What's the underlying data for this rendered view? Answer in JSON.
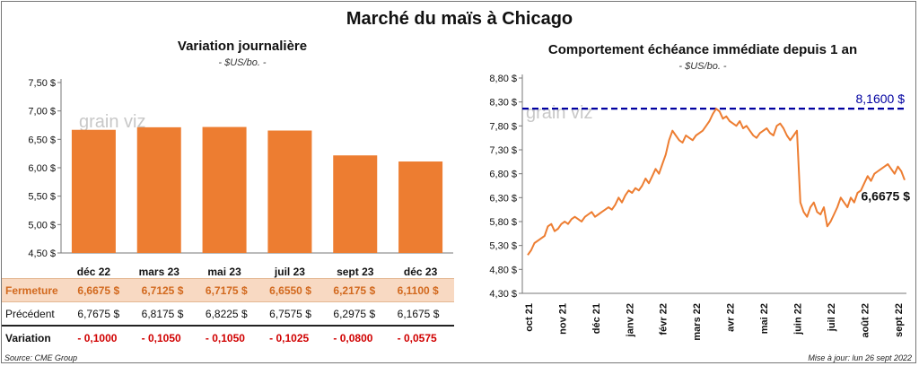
{
  "title": "Marché du maïs à Chicago",
  "left_panel": {
    "subtitle": "Variation  journalière",
    "unit": "- $US/bo. -",
    "watermark": "grain viz"
  },
  "right_panel": {
    "subtitle": "Comportement  échéance immédiate depuis 1 an",
    "unit": "- $US/bo. -",
    "watermark": "grain viz"
  },
  "table": {
    "rows": [
      {
        "label": "Fermeture",
        "values": [
          "6,6675  $",
          "6,7125  $",
          "6,7175  $",
          "6,6550  $",
          "6,2175  $",
          "6,1100  $"
        ]
      },
      {
        "label": "Précédent",
        "values": [
          "6,7675  $",
          "6,8175  $",
          "6,8225  $",
          "6,7575  $",
          "6,2975  $",
          "6,1675  $"
        ]
      },
      {
        "label": "Variation",
        "values": [
          "- 0,1000",
          "- 0,1050",
          "- 0,1050",
          "- 0,1025",
          "- 0,0800",
          "- 0,0575"
        ]
      }
    ]
  },
  "footer": {
    "source": "Source: CME Group",
    "updated": "Mise à jour: lun 26 sept 2022"
  },
  "colors": {
    "bar": "#ed7d31",
    "line": "#ed7d31",
    "max_line": "#0000a0",
    "variation": "#d00000"
  },
  "chart_data": [
    {
      "type": "bar",
      "categories": [
        "déc 22",
        "mars 23",
        "mai 23",
        "juil 23",
        "sept 23",
        "déc 23"
      ],
      "values": [
        6.6675,
        6.7125,
        6.7175,
        6.655,
        6.2175,
        6.11
      ],
      "ylim": [
        4.5,
        7.5
      ],
      "yticks": [
        "4,50 $",
        "5,00 $",
        "5,50 $",
        "6,00 $",
        "6,50 $",
        "7,00 $",
        "7,50 $"
      ],
      "ytick_values": [
        4.5,
        5.0,
        5.5,
        6.0,
        6.5,
        7.0,
        7.5
      ],
      "grid": false
    },
    {
      "type": "line",
      "xlabels": [
        "oct 21",
        "nov 21",
        "déc 21",
        "janv 22",
        "févr 22",
        "mars 22",
        "avr 22",
        "mai 22",
        "juin 22",
        "juil 22",
        "août 22",
        "sept 22"
      ],
      "ylim": [
        4.3,
        8.8
      ],
      "yticks": [
        "4,30 $",
        "4,80 $",
        "5,30 $",
        "5,80 $",
        "6,30 $",
        "6,80 $",
        "7,30 $",
        "7,80 $",
        "8,30 $",
        "8,80 $"
      ],
      "ytick_values": [
        4.3,
        4.8,
        5.3,
        5.8,
        6.3,
        6.8,
        7.3,
        7.8,
        8.3,
        8.8
      ],
      "max_value": 8.16,
      "max_label": "8,1600 $",
      "last_label": "6,6675 $",
      "series": [
        {
          "values": [
            5.1,
            5.2,
            5.35,
            5.4,
            5.45,
            5.5,
            5.7,
            5.75,
            5.6,
            5.65,
            5.75,
            5.8,
            5.75,
            5.85,
            5.9,
            5.85,
            5.8,
            5.9,
            5.95,
            6.0,
            5.9,
            5.95,
            6.0,
            6.05,
            6.1,
            6.05,
            6.15,
            6.3,
            6.2,
            6.35,
            6.45,
            6.4,
            6.5,
            6.45,
            6.55,
            6.7,
            6.6,
            6.75,
            6.9,
            6.8,
            7.0,
            7.2,
            7.5,
            7.7,
            7.6,
            7.5,
            7.45,
            7.6,
            7.55,
            7.5,
            7.6,
            7.65,
            7.7,
            7.8,
            7.9,
            8.05,
            8.16,
            8.1,
            7.95,
            8.0,
            7.9,
            7.85,
            7.8,
            7.9,
            7.75,
            7.8,
            7.7,
            7.6,
            7.55,
            7.65,
            7.7,
            7.75,
            7.65,
            7.6,
            7.8,
            7.85,
            7.75,
            7.6,
            7.5,
            7.6,
            7.7,
            6.2,
            6.0,
            5.9,
            6.1,
            6.2,
            6.0,
            5.95,
            6.1,
            5.7,
            5.8,
            5.95,
            6.1,
            6.3,
            6.2,
            6.1,
            6.3,
            6.2,
            6.4,
            6.45,
            6.6,
            6.75,
            6.65,
            6.8,
            6.85,
            6.9,
            6.95,
            7.0,
            6.9,
            6.8,
            6.95,
            6.85,
            6.6675
          ]
        }
      ]
    }
  ]
}
